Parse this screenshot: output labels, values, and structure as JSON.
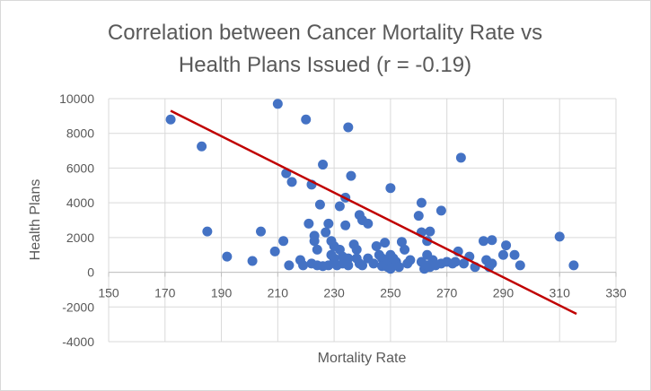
{
  "chart_data": {
    "type": "scatter",
    "title_line1": "Correlation between Cancer Mortality Rate vs",
    "title_line2": "Health Plans Issued (r = -0.19)",
    "xlabel": "Mortality Rate",
    "ylabel": "Health Plans",
    "xlim": [
      150,
      330
    ],
    "ylim": [
      -4000,
      10000
    ],
    "x_ticks": [
      "150",
      "170",
      "190",
      "210",
      "230",
      "250",
      "270",
      "290",
      "310",
      "330"
    ],
    "y_ticks": [
      "-4000",
      "-2000",
      "0",
      "2000",
      "4000",
      "6000",
      "8000",
      "10000"
    ],
    "grid": true,
    "point_color": "#4472c4",
    "trend_color": "#c00000",
    "trendline": {
      "x": [
        172,
        316
      ],
      "y": [
        9300,
        -2400
      ]
    },
    "points": [
      [
        172,
        8800
      ],
      [
        183,
        7250
      ],
      [
        185,
        2350
      ],
      [
        192,
        900
      ],
      [
        201,
        650
      ],
      [
        204,
        2350
      ],
      [
        209,
        1200
      ],
      [
        210,
        9700
      ],
      [
        212,
        1800
      ],
      [
        213,
        5700
      ],
      [
        214,
        400
      ],
      [
        215,
        5200
      ],
      [
        218,
        700
      ],
      [
        219,
        400
      ],
      [
        220,
        8800
      ],
      [
        221,
        2800
      ],
      [
        222,
        5050
      ],
      [
        222,
        500
      ],
      [
        223,
        2100
      ],
      [
        223,
        1800
      ],
      [
        224,
        400
      ],
      [
        224,
        1300
      ],
      [
        225,
        3900
      ],
      [
        226,
        350
      ],
      [
        226,
        6200
      ],
      [
        227,
        2300
      ],
      [
        228,
        2800
      ],
      [
        228,
        400
      ],
      [
        229,
        1800
      ],
      [
        229,
        1000
      ],
      [
        230,
        1500
      ],
      [
        230,
        800
      ],
      [
        231,
        400
      ],
      [
        232,
        1300
      ],
      [
        232,
        3800
      ],
      [
        233,
        500
      ],
      [
        233,
        900
      ],
      [
        234,
        4300
      ],
      [
        234,
        2700
      ],
      [
        235,
        8350
      ],
      [
        235,
        800
      ],
      [
        235,
        400
      ],
      [
        236,
        5550
      ],
      [
        237,
        1600
      ],
      [
        238,
        1300
      ],
      [
        238,
        800
      ],
      [
        239,
        3300
      ],
      [
        239,
        500
      ],
      [
        240,
        3000
      ],
      [
        240,
        400
      ],
      [
        242,
        2800
      ],
      [
        242,
        800
      ],
      [
        244,
        500
      ],
      [
        245,
        1500
      ],
      [
        246,
        1000
      ],
      [
        247,
        800
      ],
      [
        247,
        350
      ],
      [
        248,
        1700
      ],
      [
        248,
        500
      ],
      [
        249,
        300
      ],
      [
        249,
        700
      ],
      [
        250,
        4850
      ],
      [
        250,
        1000
      ],
      [
        250,
        500
      ],
      [
        250,
        200
      ],
      [
        251,
        800
      ],
      [
        252,
        600
      ],
      [
        253,
        300
      ],
      [
        254,
        1750
      ],
      [
        255,
        1300
      ],
      [
        256,
        500
      ],
      [
        257,
        700
      ],
      [
        260,
        3250
      ],
      [
        261,
        4000
      ],
      [
        261,
        2300
      ],
      [
        261,
        600
      ],
      [
        262,
        200
      ],
      [
        263,
        1800
      ],
      [
        263,
        1000
      ],
      [
        263,
        400
      ],
      [
        264,
        2350
      ],
      [
        264,
        300
      ],
      [
        265,
        700
      ],
      [
        266,
        400
      ],
      [
        268,
        3550
      ],
      [
        268,
        500
      ],
      [
        270,
        600
      ],
      [
        272,
        500
      ],
      [
        273,
        600
      ],
      [
        274,
        1200
      ],
      [
        275,
        6600
      ],
      [
        276,
        500
      ],
      [
        278,
        900
      ],
      [
        280,
        300
      ],
      [
        283,
        1800
      ],
      [
        284,
        700
      ],
      [
        285,
        300
      ],
      [
        286,
        1850
      ],
      [
        286,
        500
      ],
      [
        290,
        1000
      ],
      [
        291,
        1550
      ],
      [
        294,
        1000
      ],
      [
        296,
        400
      ],
      [
        310,
        2050
      ],
      [
        315,
        400
      ]
    ]
  }
}
